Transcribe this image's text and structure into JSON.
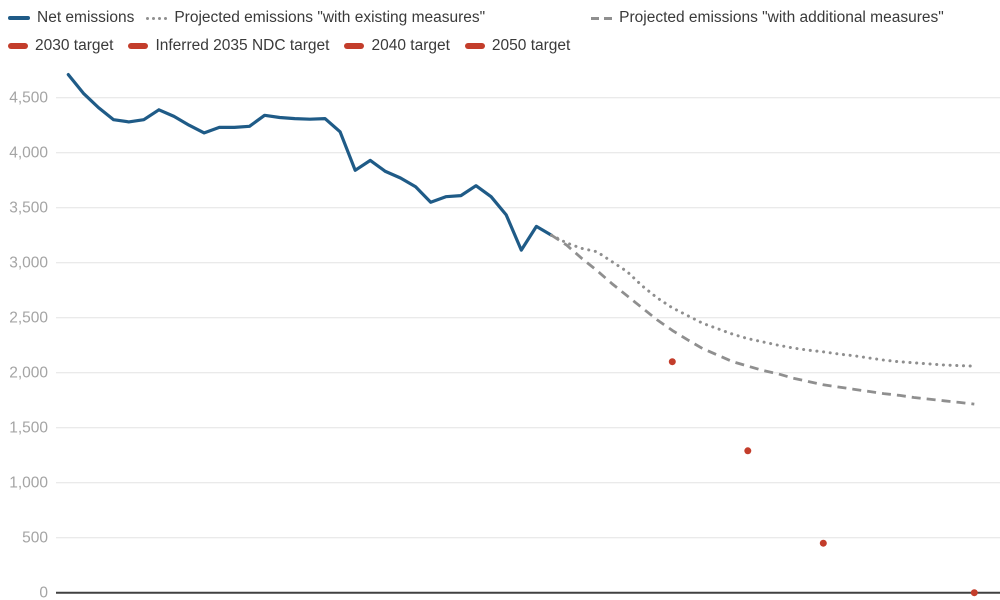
{
  "legend": {
    "rows": [
      [
        {
          "id": "net-emissions",
          "label": "Net emissions",
          "swatch": "solid-line",
          "color": "#1f5b87"
        },
        {
          "id": "projected-existing-measures",
          "label": "Projected emissions \"with existing measures\"",
          "swatch": "dotted-line",
          "color": "#8f8f8f"
        },
        {
          "id": "projected-additional-measures",
          "label": "Projected emissions \"with additional measures\"",
          "swatch": "dashed-line",
          "color": "#8f8f8f"
        }
      ],
      [
        {
          "id": "target-2030",
          "label": "2030 target",
          "swatch": "target-dash",
          "color": "#c33d2b"
        },
        {
          "id": "target-2035",
          "label": "Inferred 2035 NDC target",
          "swatch": "target-dash",
          "color": "#c33d2b"
        },
        {
          "id": "target-2040",
          "label": "2040 target",
          "swatch": "target-dash",
          "color": "#c33d2b"
        },
        {
          "id": "target-2050",
          "label": "2050 target",
          "swatch": "target-dash",
          "color": "#c33d2b"
        }
      ]
    ]
  },
  "axis": {
    "y_tick_values": [
      0,
      500,
      1000,
      1500,
      2000,
      2500,
      3000,
      3500,
      4000,
      4500
    ],
    "y_tick_labels": [
      "0",
      "500",
      "1,000",
      "1,500",
      "2,000",
      "2,500",
      "3,000",
      "3,500",
      "4,000",
      "4,500"
    ]
  },
  "colors": {
    "net_emissions_line": "#1f5b87",
    "projection_lines": "#8f8f8f",
    "target_dots": "#c33d2b",
    "gridline": "#e4e4e4",
    "zero_axis": "#414141",
    "tick_label": "#a4a4a4",
    "legend_text": "#3a3a3a"
  },
  "chart_data": {
    "type": "line",
    "title": "",
    "xlabel": "",
    "ylabel": "",
    "x_range": [
      1990,
      2050
    ],
    "ylim": [
      0,
      4750
    ],
    "grid": true,
    "legend_position": "top-left",
    "series": [
      {
        "id": "net-emissions",
        "name": "Net emissions",
        "style": "solid",
        "color": "#1f5b87",
        "x": [
          1990,
          1991,
          1992,
          1993,
          1994,
          1995,
          1996,
          1997,
          1998,
          1999,
          2000,
          2001,
          2002,
          2003,
          2004,
          2005,
          2006,
          2007,
          2008,
          2009,
          2010,
          2011,
          2012,
          2013,
          2014,
          2015,
          2016,
          2017,
          2018,
          2019,
          2020,
          2021,
          2022
        ],
        "values": [
          4710,
          4540,
          4410,
          4300,
          4280,
          4300,
          4390,
          4330,
          4250,
          4180,
          4230,
          4230,
          4240,
          4340,
          4320,
          4310,
          4305,
          4310,
          4190,
          3840,
          3930,
          3830,
          3770,
          3690,
          3550,
          3600,
          3610,
          3700,
          3600,
          3435,
          3115,
          3330,
          3250
        ]
      },
      {
        "id": "projected-existing-measures",
        "name": "Projected emissions \"with existing measures\"",
        "style": "dotted",
        "color": "#8f8f8f",
        "x": [
          2022,
          2023,
          2024,
          2025,
          2026,
          2027,
          2028,
          2029,
          2030,
          2031,
          2032,
          2033,
          2034,
          2035,
          2036,
          2037,
          2038,
          2039,
          2040,
          2041,
          2042,
          2043,
          2044,
          2045,
          2046,
          2047,
          2048,
          2049,
          2050
        ],
        "values": [
          3250,
          3180,
          3130,
          3100,
          3010,
          2920,
          2790,
          2680,
          2590,
          2520,
          2450,
          2400,
          2350,
          2310,
          2280,
          2250,
          2225,
          2205,
          2190,
          2170,
          2155,
          2135,
          2115,
          2100,
          2090,
          2080,
          2070,
          2065,
          2060
        ]
      },
      {
        "id": "projected-additional-measures",
        "name": "Projected emissions \"with additional measures\"",
        "style": "dashed",
        "color": "#8f8f8f",
        "x": [
          2022,
          2023,
          2024,
          2025,
          2026,
          2027,
          2028,
          2029,
          2030,
          2031,
          2032,
          2033,
          2034,
          2035,
          2036,
          2037,
          2038,
          2039,
          2040,
          2041,
          2042,
          2043,
          2044,
          2045,
          2046,
          2047,
          2048,
          2049,
          2050
        ],
        "values": [
          3250,
          3160,
          3040,
          2930,
          2810,
          2700,
          2590,
          2480,
          2385,
          2300,
          2220,
          2160,
          2100,
          2060,
          2020,
          1990,
          1950,
          1920,
          1890,
          1870,
          1850,
          1830,
          1810,
          1795,
          1775,
          1760,
          1745,
          1730,
          1715
        ]
      }
    ],
    "targets": [
      {
        "id": "target-2030",
        "name": "2030 target",
        "x": 2030,
        "value": 2100,
        "color": "#c33d2b"
      },
      {
        "id": "target-2035",
        "name": "Inferred 2035 NDC target",
        "x": 2035,
        "value": 1290,
        "color": "#c33d2b"
      },
      {
        "id": "target-2040",
        "name": "2040 target",
        "x": 2040,
        "value": 450,
        "color": "#c33d2b"
      },
      {
        "id": "target-2050",
        "name": "2050 target",
        "x": 2050,
        "value": 0,
        "color": "#c33d2b"
      }
    ]
  }
}
